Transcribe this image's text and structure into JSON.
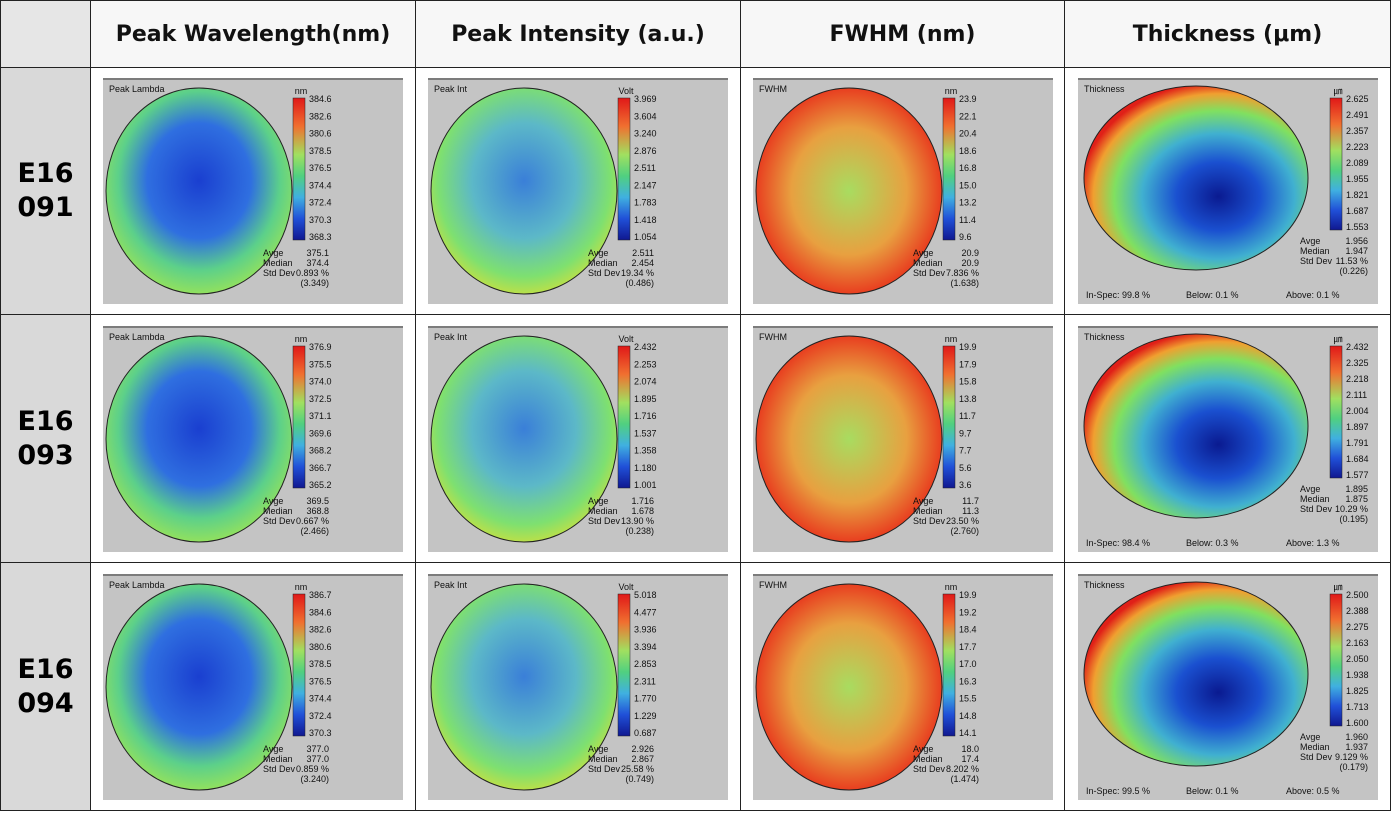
{
  "table": {
    "corner_header": "",
    "headers": [
      "Peak Wavelength(nm)",
      "Peak Intensity (a.u.)",
      "FWHM (nm)",
      "Thickness (μm)"
    ],
    "rows": [
      {
        "label": [
          "E16",
          "091"
        ],
        "maps": [
          {
            "title": "Peak Lambda",
            "unit": "nm",
            "scale": [
              "384.6",
              "382.6",
              "380.6",
              "378.5",
              "376.5",
              "374.4",
              "372.4",
              "370.3",
              "368.3"
            ],
            "stats": [
              [
                "Avge",
                "375.1"
              ],
              [
                "Median",
                "374.4"
              ],
              [
                "Std Dev",
                "0.893 %"
              ],
              [
                "",
                "(3.349)"
              ]
            ]
          },
          {
            "title": "Peak Int",
            "unit": "Volt",
            "scale": [
              "3.969",
              "3.604",
              "3.240",
              "2.876",
              "2.511",
              "2.147",
              "1.783",
              "1.418",
              "1.054"
            ],
            "stats": [
              [
                "Avge",
                "2.511"
              ],
              [
                "Median",
                "2.454"
              ],
              [
                "Std Dev",
                "19.34 %"
              ],
              [
                "",
                "(0.486)"
              ]
            ]
          },
          {
            "title": "FWHM",
            "unit": "nm",
            "scale": [
              "23.9",
              "22.1",
              "20.4",
              "18.6",
              "16.8",
              "15.0",
              "13.2",
              "11.4",
              "9.6"
            ],
            "stats": [
              [
                "Avge",
                "20.9"
              ],
              [
                "Median",
                "20.9"
              ],
              [
                "Std Dev",
                "7.836 %"
              ],
              [
                "",
                "(1.638)"
              ]
            ]
          },
          {
            "title": "Thickness",
            "unit": "㎛",
            "scale": [
              "2.625",
              "2.491",
              "2.357",
              "2.223",
              "2.089",
              "1.955",
              "1.821",
              "1.687",
              "1.553"
            ],
            "stats": [
              [
                "Avge",
                "1.956"
              ],
              [
                "Median",
                "1.947"
              ],
              [
                "Std Dev",
                "11.53 %"
              ],
              [
                "",
                "(0.226)"
              ]
            ],
            "footer": [
              "In-Spec:  99.8 %",
              "Below:  0.1 %",
              "Above:  0.1 %"
            ]
          }
        ]
      },
      {
        "label": [
          "E16",
          "093"
        ],
        "maps": [
          {
            "title": "Peak Lambda",
            "unit": "nm",
            "scale": [
              "376.9",
              "375.5",
              "374.0",
              "372.5",
              "371.1",
              "369.6",
              "368.2",
              "366.7",
              "365.2"
            ],
            "stats": [
              [
                "Avge",
                "369.5"
              ],
              [
                "Median",
                "368.8"
              ],
              [
                "Std Dev",
                "0.667 %"
              ],
              [
                "",
                "(2.466)"
              ]
            ]
          },
          {
            "title": "Peak Int",
            "unit": "Volt",
            "scale": [
              "2.432",
              "2.253",
              "2.074",
              "1.895",
              "1.716",
              "1.537",
              "1.358",
              "1.180",
              "1.001"
            ],
            "stats": [
              [
                "Avge",
                "1.716"
              ],
              [
                "Median",
                "1.678"
              ],
              [
                "Std Dev",
                "13.90 %"
              ],
              [
                "",
                "(0.238)"
              ]
            ]
          },
          {
            "title": "FWHM",
            "unit": "nm",
            "scale": [
              "19.9",
              "17.9",
              "15.8",
              "13.8",
              "11.7",
              "9.7",
              "7.7",
              "5.6",
              "3.6"
            ],
            "stats": [
              [
                "Avge",
                "11.7"
              ],
              [
                "Median",
                "11.3"
              ],
              [
                "Std Dev",
                "23.50 %"
              ],
              [
                "",
                "(2.760)"
              ]
            ]
          },
          {
            "title": "Thickness",
            "unit": "㎛",
            "scale": [
              "2.432",
              "2.325",
              "2.218",
              "2.111",
              "2.004",
              "1.897",
              "1.791",
              "1.684",
              "1.577"
            ],
            "stats": [
              [
                "Avge",
                "1.895"
              ],
              [
                "Median",
                "1.875"
              ],
              [
                "Std Dev",
                "10.29 %"
              ],
              [
                "",
                "(0.195)"
              ]
            ],
            "footer": [
              "In-Spec:  98.4 %",
              "Below:  0.3 %",
              "Above:  1.3 %"
            ]
          }
        ]
      },
      {
        "label": [
          "E16",
          "094"
        ],
        "maps": [
          {
            "title": "Peak Lambda",
            "unit": "nm",
            "scale": [
              "386.7",
              "384.6",
              "382.6",
              "380.6",
              "378.5",
              "376.5",
              "374.4",
              "372.4",
              "370.3"
            ],
            "stats": [
              [
                "Avge",
                "377.0"
              ],
              [
                "Median",
                "377.0"
              ],
              [
                "Std Dev",
                "0.859 %"
              ],
              [
                "",
                "(3.240)"
              ]
            ]
          },
          {
            "title": "Peak Int",
            "unit": "Volt",
            "scale": [
              "5.018",
              "4.477",
              "3.936",
              "3.394",
              "2.853",
              "2.311",
              "1.770",
              "1.229",
              "0.687"
            ],
            "stats": [
              [
                "Avge",
                "2.926"
              ],
              [
                "Median",
                "2.867"
              ],
              [
                "Std Dev",
                "25.58 %"
              ],
              [
                "",
                "(0.749)"
              ]
            ]
          },
          {
            "title": "FWHM",
            "unit": "nm",
            "scale": [
              "19.9",
              "19.2",
              "18.4",
              "17.7",
              "17.0",
              "16.3",
              "15.5",
              "14.8",
              "14.1"
            ],
            "stats": [
              [
                "Avge",
                "18.0"
              ],
              [
                "Median",
                "17.4"
              ],
              [
                "Std Dev",
                "8.202 %"
              ],
              [
                "",
                "(1.474)"
              ]
            ]
          },
          {
            "title": "Thickness",
            "unit": "㎛",
            "scale": [
              "2.500",
              "2.388",
              "2.275",
              "2.163",
              "2.050",
              "1.938",
              "1.825",
              "1.713",
              "1.600"
            ],
            "stats": [
              [
                "Avge",
                "1.960"
              ],
              [
                "Median",
                "1.937"
              ],
              [
                "Std Dev",
                "9.129 %"
              ],
              [
                "",
                "(0.179)"
              ]
            ],
            "footer": [
              "In-Spec:  99.5 %",
              "Below:  0.1 %",
              "Above:  0.5 %"
            ]
          }
        ]
      }
    ]
  }
}
